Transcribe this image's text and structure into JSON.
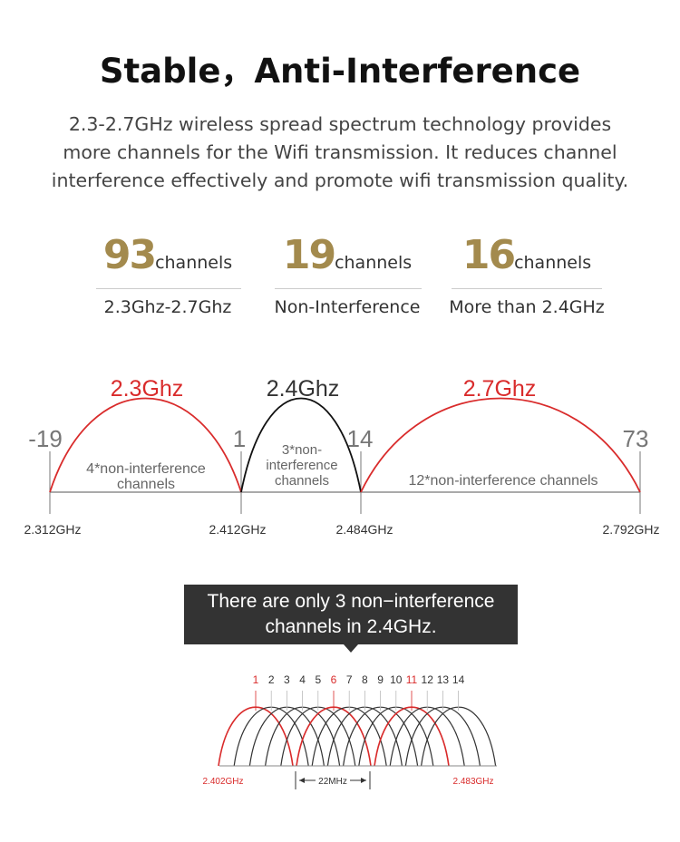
{
  "header": {
    "title": "Stable，Anti-Interference",
    "description_lines": [
      "2.3-2.7GHz wireless spread spectrum technology provides",
      "more channels for the Wifi transmission. It reduces channel",
      "interference effectively and promote wifi transmission quality."
    ]
  },
  "stats": [
    {
      "number": "93",
      "unit": "channels",
      "caption": "2.3Ghz-2.7Ghz"
    },
    {
      "number": "19",
      "unit": "channels",
      "caption": "Non-Interference"
    },
    {
      "number": "16",
      "unit": "channels",
      "caption": "More than 2.4GHz"
    }
  ],
  "spectrum": {
    "bands": [
      {
        "label": "2.3Ghz",
        "color": "#d92b2b",
        "inner_text": [
          "4*non-interference",
          "channels"
        ]
      },
      {
        "label": "2.4Ghz",
        "color": "#111111",
        "inner_text": [
          "3*non-",
          "interference",
          "channels"
        ]
      },
      {
        "label": "2.7Ghz",
        "color": "#d92b2b",
        "inner_text": [
          "12*non-interference channels"
        ]
      }
    ],
    "channel_markers": [
      "-19",
      "1",
      "14",
      "73"
    ],
    "frequencies": [
      "2.312GHz",
      "2.412GHz",
      "2.484GHz",
      "2.792GHz"
    ],
    "colors": {
      "accent": "#d92b2b",
      "dark": "#111111",
      "gold": "#a38a4d"
    }
  },
  "tooltip": {
    "lines": [
      "There are only 3 non−interference",
      "channels in 2.4GHz."
    ]
  },
  "channel_diagram": {
    "channels": [
      "1",
      "2",
      "3",
      "4",
      "5",
      "6",
      "7",
      "8",
      "9",
      "10",
      "11",
      "12",
      "13",
      "14"
    ],
    "highlighted": [
      "1",
      "6",
      "11"
    ],
    "start_freq": "2.402GHz",
    "end_freq": "2.483GHz",
    "width_label": "22MHz"
  }
}
